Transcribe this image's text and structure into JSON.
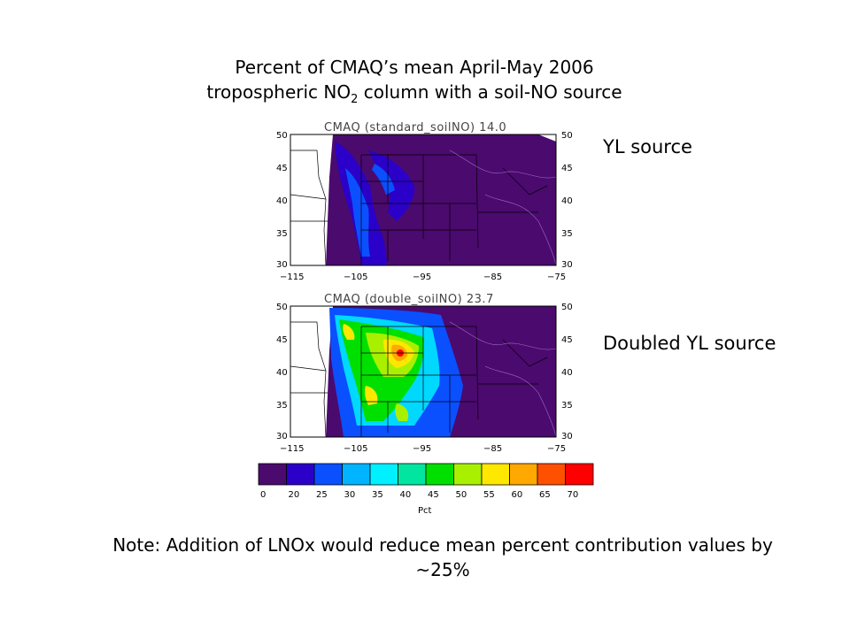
{
  "title": {
    "line1": "Percent of CMAQ’s mean April-May 2006",
    "line2_pre": "tropospheric NO",
    "line2_sub": "2",
    "line2_post": " column with a soil-NO source"
  },
  "maps": [
    {
      "title": "CMAQ (standard_soilNO) 14.0",
      "side_label": "YL source"
    },
    {
      "title": "CMAQ (double_soilNO) 23.7",
      "side_label": "Doubled YL source"
    }
  ],
  "axes": {
    "lat_ticks": [
      "50",
      "45",
      "40",
      "35",
      "30"
    ],
    "lon_ticks": [
      "−115",
      "−105",
      "−95",
      "−85",
      "−75"
    ]
  },
  "colorbar": {
    "ticks": [
      "0",
      "20",
      "25",
      "30",
      "35",
      "40",
      "45",
      "50",
      "55",
      "60",
      "65",
      "70"
    ],
    "colors": [
      "#4b0a6e",
      "#2b00c8",
      "#0a50ff",
      "#00b4ff",
      "#00f0ff",
      "#00e6a0",
      "#00e000",
      "#a8f000",
      "#ffe800",
      "#ffa800",
      "#ff5000",
      "#ff0000"
    ],
    "label": "Pct"
  },
  "note": "Note: Addition of LNOx would reduce mean percent contribution values by ~25%"
}
